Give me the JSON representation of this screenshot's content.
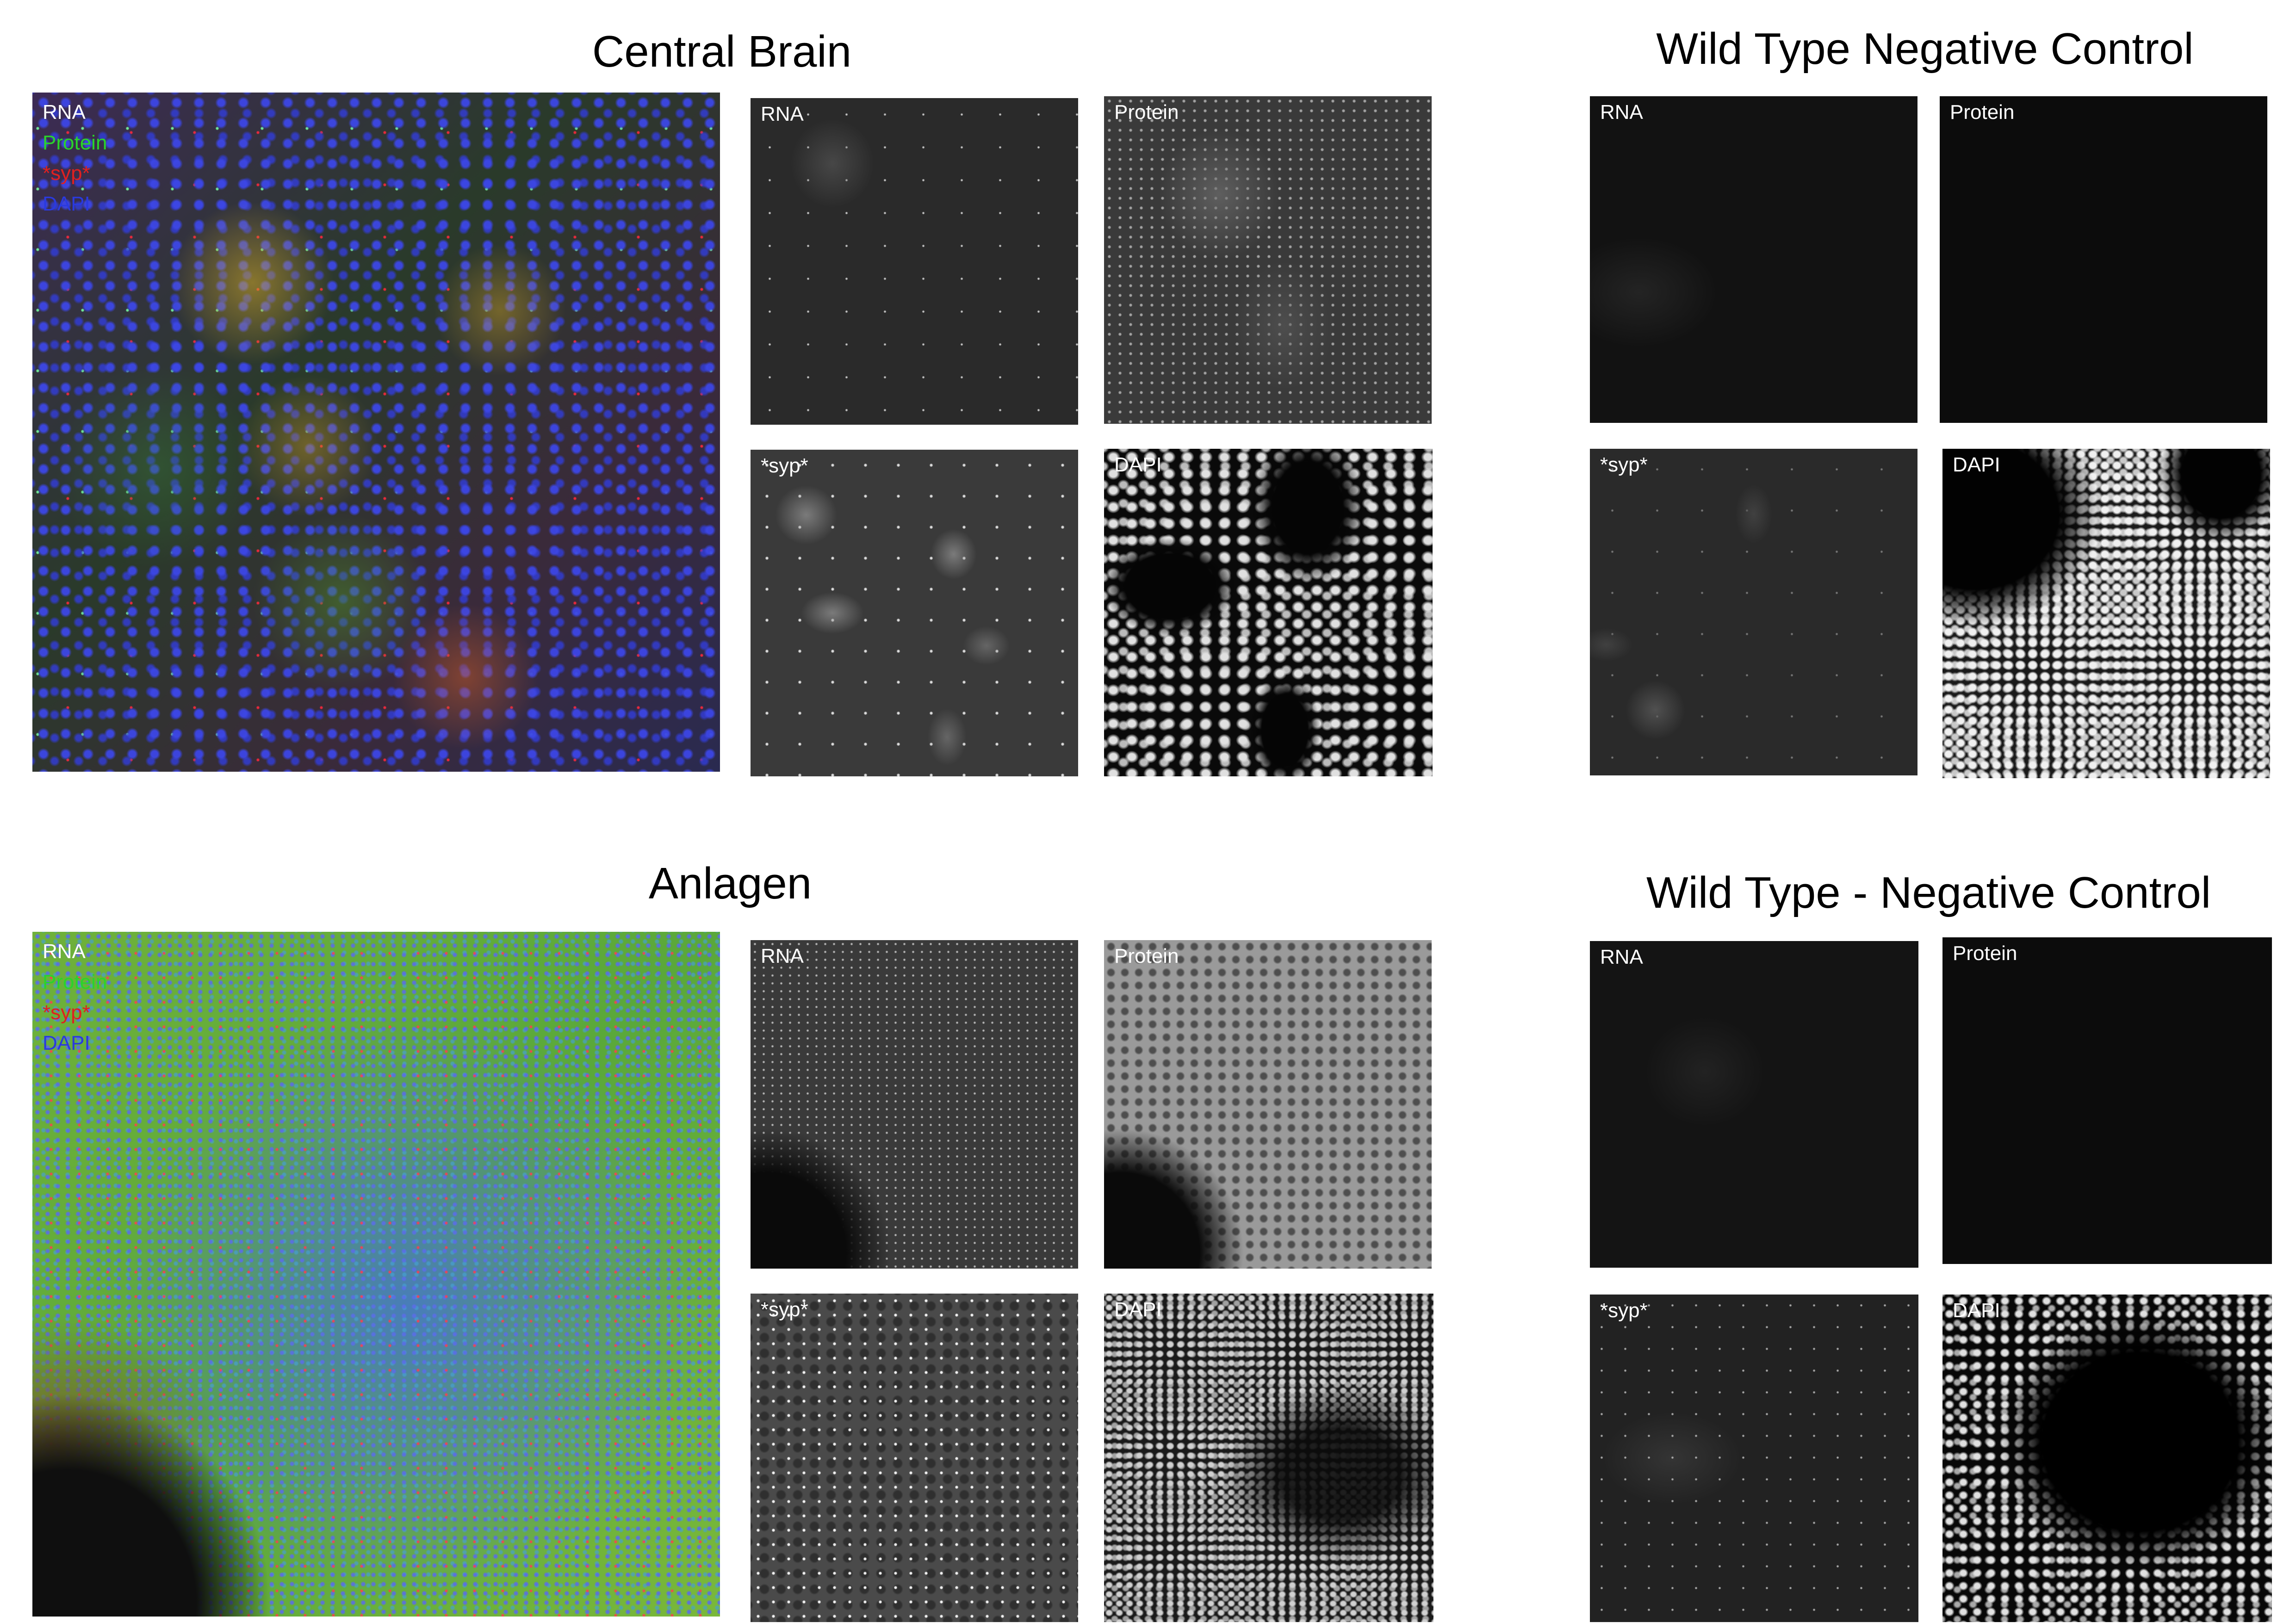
{
  "figure": {
    "groups": [
      {
        "title": "Central Brain",
        "merged_legend": [
          "RNA",
          "Protein",
          "*syp*",
          "DAPI"
        ],
        "panels": [
          "RNA",
          "Protein",
          "*syp*",
          "DAPI"
        ]
      },
      {
        "title": "Wild Type Negative Control",
        "panels": [
          "RNA",
          "Protein",
          "*syp*",
          "DAPI"
        ]
      },
      {
        "title": "Anlagen",
        "merged_legend": [
          "RNA",
          "Protein",
          "*syp*",
          "DAPI"
        ],
        "panels": [
          "RNA",
          "Protein",
          "*syp*",
          "DAPI"
        ]
      },
      {
        "title": "Wild Type - Negative Control",
        "panels": [
          "RNA",
          "Protein",
          "*syp*",
          "DAPI"
        ]
      }
    ],
    "legend_colors": {
      "RNA": "#ffffff",
      "Protein": "#2ad42a",
      "*syp*": "#e02020",
      "DAPI": "#2a3ae0"
    }
  }
}
